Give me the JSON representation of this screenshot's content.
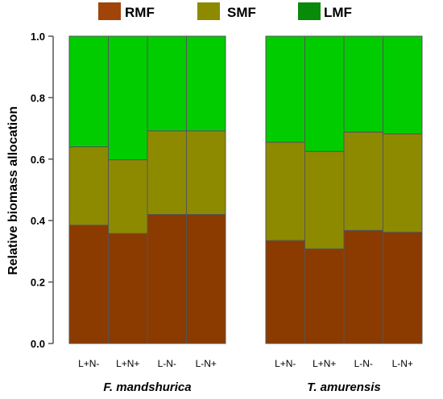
{
  "chart_data": {
    "type": "bar",
    "stacked": true,
    "ylabel": "Relative biomass allocation",
    "ylim": [
      0,
      1.0
    ],
    "yticks": [
      "0.0",
      "0.2",
      "0.4",
      "0.6",
      "0.8",
      "1.0"
    ],
    "grid": false,
    "legend_position": "top",
    "groups": [
      {
        "name": "F. mandshurica",
        "categories": [
          "L+N-",
          "L+N+",
          "L-N-",
          "L-N+"
        ]
      },
      {
        "name": "T. amurensis",
        "categories": [
          "L+N-",
          "L+N+",
          "L-N-",
          "L-N+"
        ]
      }
    ],
    "series": [
      {
        "name": "RMF",
        "color": "#8b3a00",
        "legend_color": "#a0440a",
        "values": [
          0.385,
          0.358,
          0.42,
          0.42,
          0.335,
          0.308,
          0.368,
          0.362
        ]
      },
      {
        "name": "SMF",
        "color": "#8e8a00",
        "legend_color": "#8e8a00",
        "values": [
          0.255,
          0.24,
          0.272,
          0.272,
          0.32,
          0.317,
          0.32,
          0.32
        ]
      },
      {
        "name": "LMF",
        "color": "#00cc00",
        "legend_color": "#0a8a0a",
        "values": [
          0.36,
          0.402,
          0.308,
          0.308,
          0.345,
          0.375,
          0.312,
          0.318
        ]
      }
    ]
  }
}
